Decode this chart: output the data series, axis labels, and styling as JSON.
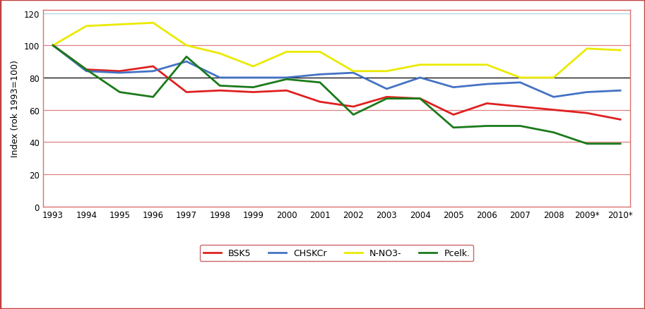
{
  "years": [
    "1993",
    "1994",
    "1995",
    "1996",
    "1997",
    "1998",
    "1999",
    "2000",
    "2001",
    "2002",
    "2003",
    "2004",
    "2005",
    "2006",
    "2007",
    "2008",
    "2009*",
    "2010*"
  ],
  "BSK5": [
    100,
    85,
    84,
    87,
    71,
    72,
    71,
    72,
    65,
    62,
    68,
    67,
    57,
    64,
    62,
    60,
    58,
    54
  ],
  "CHSKCr": [
    100,
    84,
    83,
    84,
    90,
    80,
    80,
    80,
    82,
    83,
    73,
    80,
    74,
    76,
    77,
    68,
    71,
    72
  ],
  "NNO3": [
    100,
    112,
    113,
    114,
    100,
    95,
    87,
    96,
    96,
    84,
    84,
    88,
    88,
    88,
    80,
    80,
    98,
    97
  ],
  "Pcelk": [
    100,
    85,
    71,
    68,
    93,
    75,
    74,
    79,
    77,
    57,
    67,
    67,
    49,
    50,
    50,
    46,
    39,
    39
  ],
  "line_colors": {
    "BSK5": "#e02020",
    "CHSKCr": "#4472c4",
    "NNO3": "#eaea00",
    "Pcelk": "#1a7a1a"
  },
  "ylabel": "Index (rok 1993=100)",
  "ylim": [
    0,
    122
  ],
  "yticks": [
    0,
    20,
    40,
    60,
    80,
    100,
    120
  ],
  "hlines_thin": [
    20,
    40,
    60,
    100
  ],
  "hlines_bold": [
    80
  ],
  "hline_thin_color": "#e08080",
  "hline_bold_color": "#000000",
  "hline_top_color": "#add8e6",
  "background_color": "#ffffff",
  "plot_bg": "#ffffff",
  "border_color": "#e07070",
  "legend_labels": [
    "BSK5",
    "CHSKCr",
    "N-NO3-",
    "Pcelk."
  ]
}
